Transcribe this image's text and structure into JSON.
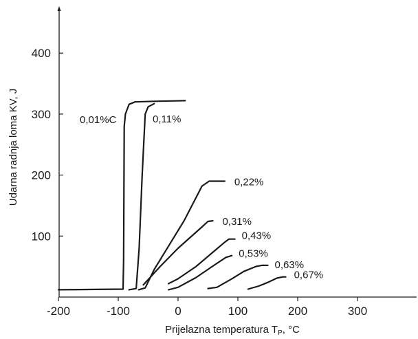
{
  "chart_data": {
    "type": "line",
    "title": "",
    "xlabel": "Prijelazna temperatura T",
    "xlabel_subscript": "P",
    "xlabel_unit": ", °C",
    "ylabel": "Udarna radnja loma KV, J",
    "xlim": [
      -200,
      380
    ],
    "ylim": [
      0,
      460
    ],
    "x_ticks": [
      -200,
      -100,
      0,
      100,
      200,
      300
    ],
    "y_ticks": [
      100,
      200,
      300,
      400
    ],
    "grid": false,
    "legend": "none",
    "series": [
      {
        "name": "0,01%C",
        "points": [
          [
            -200,
            12
          ],
          [
            -92,
            13
          ],
          [
            -91,
            60
          ],
          [
            -90,
            280
          ],
          [
            -88,
            300
          ],
          [
            -82,
            316
          ],
          [
            -72,
            320
          ],
          [
            -40,
            321
          ],
          [
            12,
            322
          ]
        ]
      },
      {
        "name": "0,11%",
        "points": [
          [
            -82,
            12
          ],
          [
            -70,
            14
          ],
          [
            -65,
            80
          ],
          [
            -60,
            200
          ],
          [
            -55,
            300
          ],
          [
            -50,
            312
          ],
          [
            -40,
            317
          ]
        ]
      },
      {
        "name": "0,22%",
        "points": [
          [
            -66,
            12
          ],
          [
            -55,
            15
          ],
          [
            -40,
            45
          ],
          [
            10,
            125
          ],
          [
            40,
            182
          ],
          [
            52,
            190
          ],
          [
            60,
            190
          ],
          [
            78,
            190
          ]
        ]
      },
      {
        "name": "0,31%",
        "points": [
          [
            -58,
            20
          ],
          [
            -30,
            50
          ],
          [
            0,
            80
          ],
          [
            40,
            115
          ],
          [
            50,
            124
          ],
          [
            58,
            125
          ]
        ]
      },
      {
        "name": "0,43%",
        "points": [
          [
            -16,
            22
          ],
          [
            0,
            30
          ],
          [
            30,
            50
          ],
          [
            60,
            75
          ],
          [
            78,
            90
          ],
          [
            85,
            95
          ],
          [
            95,
            95
          ]
        ]
      },
      {
        "name": "0,53%",
        "points": [
          [
            -16,
            12
          ],
          [
            0,
            16
          ],
          [
            30,
            32
          ],
          [
            60,
            52
          ],
          [
            80,
            65
          ],
          [
            90,
            68
          ]
        ]
      },
      {
        "name": "0,63%",
        "points": [
          [
            50,
            14
          ],
          [
            65,
            16
          ],
          [
            90,
            30
          ],
          [
            110,
            42
          ],
          [
            130,
            50
          ],
          [
            140,
            52
          ],
          [
            150,
            52
          ]
        ]
      },
      {
        "name": "0,67%",
        "points": [
          [
            117,
            13
          ],
          [
            135,
            18
          ],
          [
            150,
            24
          ],
          [
            165,
            31
          ],
          [
            175,
            33
          ],
          [
            180,
            33
          ]
        ]
      }
    ]
  }
}
